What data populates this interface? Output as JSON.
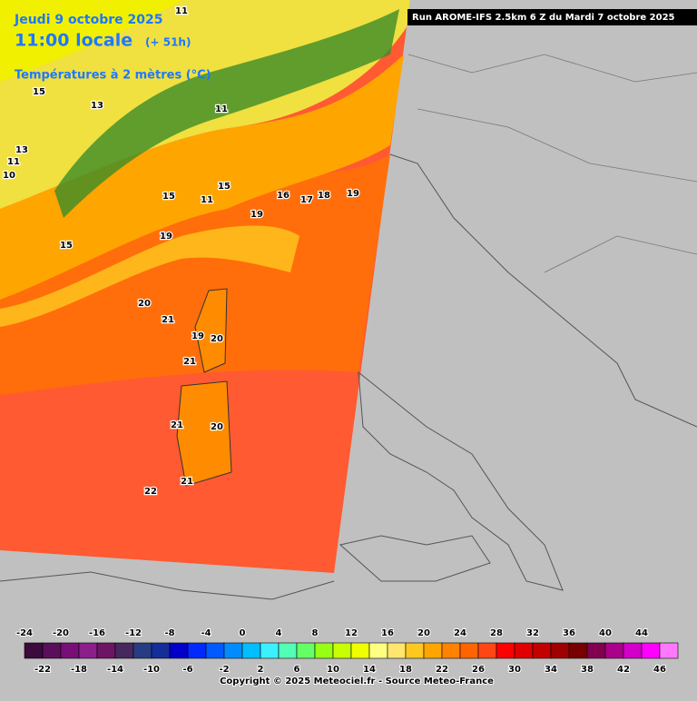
{
  "header": {
    "date": "Jeudi 9 octobre 2025",
    "time": "11:00 locale",
    "offset": "(+ 51h)",
    "field": "Températures à 2 mètres (°C)",
    "run": "Run AROME-IFS 2.5km 6 Z du Mardi 7 octobre 2025"
  },
  "map_labels": [
    11,
    15,
    13,
    13,
    11,
    10,
    15,
    11,
    15,
    16,
    17,
    18,
    19,
    19,
    19,
    15,
    20,
    21,
    19,
    20,
    21,
    21,
    20,
    21,
    22,
    11
  ],
  "legend": {
    "ticks": [
      -24,
      -22,
      -20,
      -18,
      -16,
      -14,
      -12,
      -10,
      -8,
      -6,
      -4,
      -2,
      0,
      2,
      4,
      6,
      8,
      10,
      12,
      14,
      16,
      18,
      20,
      22,
      24,
      26,
      28,
      30,
      32,
      34,
      36,
      38,
      40,
      42,
      44,
      46
    ],
    "colors": [
      "#3c0a3c",
      "#5a0f5a",
      "#780f78",
      "#8c1e8c",
      "#6e1464",
      "#46285f",
      "#283c82",
      "#142d9b",
      "#0000c8",
      "#0028ff",
      "#005aff",
      "#008cff",
      "#00beff",
      "#3cf0ff",
      "#50ffb4",
      "#64ff64",
      "#96ff14",
      "#c8ff00",
      "#f0ff00",
      "#ffff82",
      "#ffe66e",
      "#ffc81e",
      "#ffa500",
      "#ff8200",
      "#ff6400",
      "#ff4614",
      "#ff0000",
      "#e10000",
      "#c30000",
      "#a00000",
      "#780000",
      "#820050",
      "#aa008c",
      "#d200c8",
      "#ff00ff",
      "#ff78ff"
    ]
  },
  "footer": {
    "copyright": "Copyright © 2025 Meteociel.fr - Source Meteo-France"
  }
}
